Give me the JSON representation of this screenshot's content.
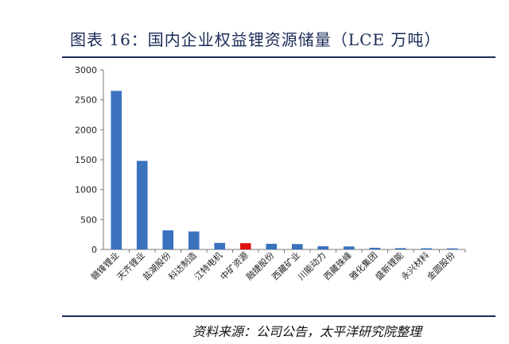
{
  "header": {
    "title": "图表 16：国内企业权益锂资源储量（LCE 万吨）"
  },
  "footer": {
    "source": "资料来源：公司公告，太平洋研究院整理"
  },
  "chart_data": {
    "type": "bar",
    "categories": [
      "赣锋锂业",
      "天齐锂业",
      "盐湖股份",
      "科达制造",
      "江特电机",
      "中矿资源",
      "融捷股份",
      "西藏矿业",
      "川能动力",
      "西藏珠峰",
      "雅化集团",
      "盛新锂能",
      "永兴材料",
      "金圆股份"
    ],
    "values": [
      2650,
      1480,
      320,
      300,
      110,
      105,
      95,
      90,
      55,
      50,
      28,
      22,
      20,
      18
    ],
    "highlight_index": 5,
    "bar_color": "#3a72be",
    "highlight_color": "#e0100f",
    "ylim": [
      0,
      3000
    ],
    "yticks": [
      0,
      500,
      1000,
      1500,
      2000,
      2500,
      3000
    ],
    "grid": false
  }
}
